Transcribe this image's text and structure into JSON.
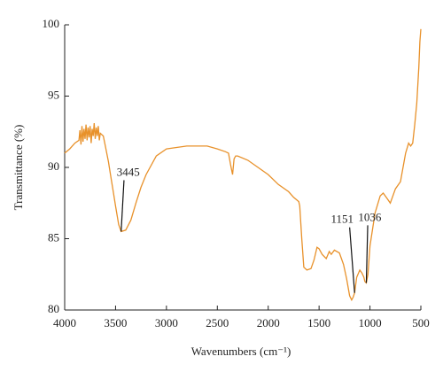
{
  "chart_data": {
    "type": "line",
    "x_label": "Wavenumbers (cm⁻¹)",
    "y_label": "Transmittance (%)",
    "xlim": [
      4000,
      500
    ],
    "ylim": [
      80,
      100
    ],
    "xticks": [
      4000,
      3500,
      3000,
      2500,
      2000,
      1500,
      1000,
      500
    ],
    "yticks": [
      80,
      85,
      90,
      95,
      100
    ],
    "series": [
      {
        "color": "#e8912a",
        "x": [
          4000,
          3950,
          3900,
          3860,
          3850,
          3840,
          3830,
          3820,
          3810,
          3800,
          3790,
          3780,
          3770,
          3760,
          3750,
          3740,
          3730,
          3720,
          3710,
          3700,
          3690,
          3680,
          3670,
          3660,
          3650,
          3620,
          3600,
          3570,
          3550,
          3520,
          3500,
          3470,
          3445,
          3400,
          3350,
          3300,
          3250,
          3200,
          3100,
          3000,
          2900,
          2800,
          2700,
          2600,
          2500,
          2420,
          2390,
          2370,
          2350,
          2335,
          2320,
          2300,
          2200,
          2100,
          2000,
          1900,
          1800,
          1750,
          1700,
          1690,
          1670,
          1650,
          1620,
          1580,
          1550,
          1520,
          1500,
          1470,
          1430,
          1400,
          1380,
          1350,
          1300,
          1260,
          1230,
          1200,
          1180,
          1165,
          1151,
          1130,
          1100,
          1080,
          1060,
          1050,
          1036,
          1020,
          1000,
          950,
          900,
          870,
          830,
          800,
          750,
          700,
          650,
          620,
          600,
          580,
          560,
          540,
          520,
          510,
          500
        ],
        "values": [
          91.0,
          91.3,
          91.7,
          91.9,
          92.6,
          91.6,
          92.9,
          91.8,
          92.7,
          92.0,
          93.0,
          91.9,
          92.8,
          92.1,
          92.9,
          91.7,
          92.7,
          92.2,
          93.1,
          92.0,
          92.8,
          92.2,
          92.9,
          91.9,
          92.4,
          92.2,
          91.5,
          90.4,
          89.5,
          88.2,
          87.3,
          86.0,
          85.5,
          85.6,
          86.3,
          87.5,
          88.6,
          89.5,
          90.8,
          91.3,
          91.4,
          91.5,
          91.5,
          91.5,
          91.3,
          91.1,
          91.0,
          90.2,
          89.5,
          90.6,
          90.8,
          90.8,
          90.5,
          90.0,
          89.5,
          88.8,
          88.3,
          87.9,
          87.6,
          87.3,
          85.0,
          83.0,
          82.8,
          82.9,
          83.5,
          84.4,
          84.3,
          83.9,
          83.6,
          84.1,
          83.9,
          84.2,
          84.0,
          83.2,
          82.2,
          81.0,
          80.7,
          80.9,
          81.2,
          82.3,
          82.8,
          82.6,
          82.3,
          82.0,
          81.9,
          82.5,
          84.5,
          86.8,
          88.0,
          88.2,
          87.8,
          87.5,
          88.5,
          89.0,
          91.0,
          91.7,
          91.5,
          91.7,
          93.0,
          94.5,
          97.0,
          98.8,
          99.7
        ]
      }
    ],
    "annotations": [
      {
        "label": "3445",
        "x": 3445,
        "y": 85.5
      },
      {
        "label": "1151",
        "x": 1151,
        "y": 81.2
      },
      {
        "label": "1036",
        "x": 1036,
        "y": 81.9
      }
    ]
  }
}
